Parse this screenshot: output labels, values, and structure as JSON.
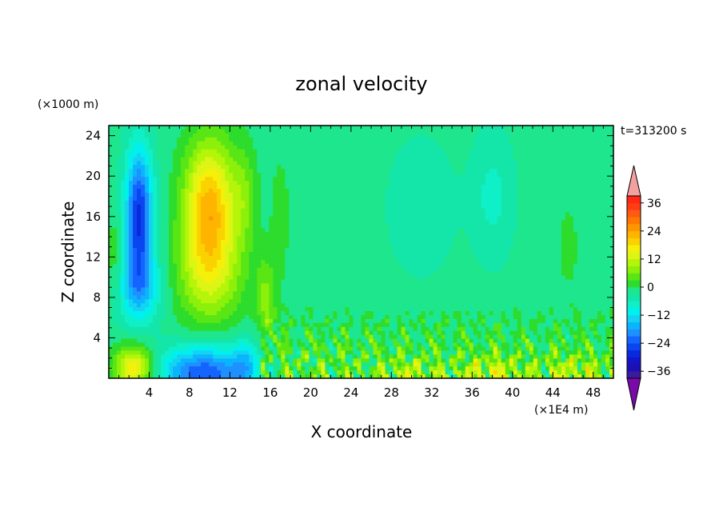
{
  "chart_data": {
    "type": "heatmap",
    "title": "zonal velocity",
    "xlabel": "X coordinate",
    "ylabel": "Z coordinate",
    "x_unit": "(×1E4 m)",
    "y_unit": "(×1000 m)",
    "time_label": "t=313200 s",
    "xlim": [
      0,
      50
    ],
    "ylim": [
      0,
      25
    ],
    "x_ticks": [
      4,
      8,
      12,
      16,
      20,
      24,
      28,
      32,
      36,
      40,
      44,
      48
    ],
    "y_ticks": [
      4,
      8,
      12,
      16,
      20,
      24
    ],
    "colorbar": {
      "levels": [
        -42,
        -39,
        -36,
        -33,
        -30,
        -27,
        -24,
        -21,
        -18,
        -15,
        -12,
        -9,
        -6,
        -3,
        0,
        3,
        6,
        9,
        12,
        15,
        18,
        21,
        24,
        27,
        30,
        33,
        36,
        39,
        42
      ],
      "tick_labels": [
        36,
        24,
        12,
        0,
        -12,
        -24,
        -36
      ],
      "colors": [
        "#7a0aa8",
        "#3c1a9e",
        "#1e10b0",
        "#1414c8",
        "#0a28dc",
        "#0a46f0",
        "#1464ff",
        "#1e90ff",
        "#0ab4ff",
        "#14d2f0",
        "#00f0f0",
        "#0ff0c8",
        "#14e6aa",
        "#1ee68c",
        "#2ddc2d",
        "#5ae614",
        "#8cf00a",
        "#b4f50a",
        "#dcf514",
        "#f5f00a",
        "#fad200",
        "#ffb400",
        "#ff9600",
        "#ff7800",
        "#ff5a14",
        "#ff3c14",
        "#ff2814",
        "#f5a0a0"
      ]
    },
    "field_features": [
      {
        "x": 3,
        "z": 16,
        "value": -25,
        "desc": "upper westward jet"
      },
      {
        "x": 10,
        "z": 17,
        "value": 25,
        "desc": "upper eastward jet"
      },
      {
        "x": 9.5,
        "z": 1,
        "value": -35,
        "desc": "low-level westward flow"
      },
      {
        "x": 2.5,
        "z": 1,
        "value": 20,
        "desc": "low-level eastward flow"
      },
      {
        "x": 30,
        "z": 15,
        "value": -3,
        "desc": "weak interior flow"
      },
      {
        "x": 38,
        "z": 1,
        "value": 18,
        "desc": "low-level turbulent eastward flow"
      }
    ]
  }
}
